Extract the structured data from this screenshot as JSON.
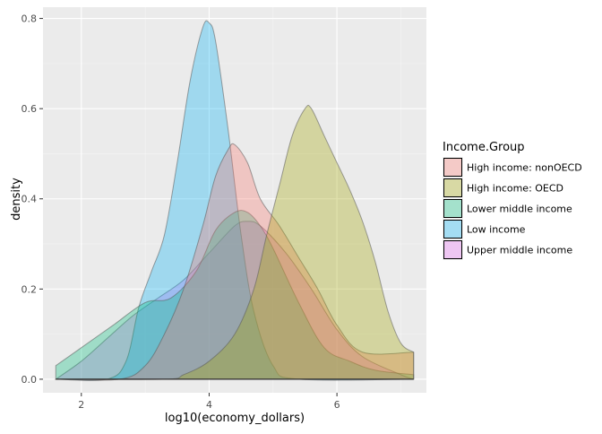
{
  "chart_data": {
    "type": "area",
    "subtype": "density",
    "xlabel": "log10(economy_dollars)",
    "ylabel": "density",
    "xlim": [
      1.4,
      7.4
    ],
    "ylim": [
      -0.03,
      0.825
    ],
    "x_ticks": [
      2,
      4,
      6
    ],
    "y_ticks": [
      0.0,
      0.2,
      0.4,
      0.6,
      0.8
    ],
    "y_tick_labels": [
      "0.0",
      "0.2",
      "0.4",
      "0.6",
      "0.8"
    ],
    "grid": true,
    "legend_placement": "right",
    "legend_title": "Income.Group",
    "series": [
      {
        "name": "Upper middle income",
        "color": "#E76BF3",
        "x": [
          1.6,
          2.0,
          2.4,
          2.8,
          3.2,
          3.6,
          4.0,
          4.4,
          4.6,
          4.8,
          5.2,
          5.6,
          6.0,
          6.4,
          7.0,
          7.2
        ],
        "y": [
          0.0,
          0.04,
          0.09,
          0.14,
          0.18,
          0.22,
          0.28,
          0.34,
          0.35,
          0.34,
          0.28,
          0.2,
          0.11,
          0.05,
          0.01,
          0.0
        ]
      },
      {
        "name": "Low income",
        "color": "#00B0F6",
        "x": [
          1.6,
          2.4,
          2.7,
          2.9,
          3.1,
          3.3,
          3.5,
          3.7,
          3.9,
          4.0,
          4.1,
          4.3,
          4.5,
          4.7,
          5.0,
          5.4,
          7.2
        ],
        "y": [
          0.0,
          0.0,
          0.04,
          0.16,
          0.24,
          0.32,
          0.48,
          0.66,
          0.78,
          0.79,
          0.75,
          0.55,
          0.32,
          0.15,
          0.03,
          0.0,
          0.0
        ]
      },
      {
        "name": "Lower middle income",
        "color": "#00BF7D",
        "x": [
          1.6,
          2.0,
          2.5,
          3.0,
          3.4,
          3.8,
          4.1,
          4.4,
          4.6,
          4.8,
          5.0,
          5.4,
          5.8,
          6.2,
          6.6,
          7.2
        ],
        "y": [
          0.03,
          0.07,
          0.12,
          0.17,
          0.18,
          0.24,
          0.33,
          0.37,
          0.37,
          0.34,
          0.29,
          0.17,
          0.07,
          0.04,
          0.02,
          0.01
        ]
      },
      {
        "name": "High income: nonOECD",
        "color": "#F8766D",
        "x": [
          1.6,
          2.6,
          3.0,
          3.3,
          3.6,
          3.9,
          4.1,
          4.3,
          4.4,
          4.6,
          4.8,
          5.1,
          5.4,
          5.7,
          6.0,
          6.4,
          7.2
        ],
        "y": [
          0.0,
          0.0,
          0.03,
          0.1,
          0.2,
          0.34,
          0.45,
          0.51,
          0.52,
          0.48,
          0.4,
          0.34,
          0.27,
          0.2,
          0.12,
          0.06,
          0.06
        ]
      },
      {
        "name": "High income: OECD",
        "color": "#A3A500",
        "x": [
          1.6,
          3.3,
          3.6,
          4.0,
          4.4,
          4.7,
          4.9,
          5.1,
          5.3,
          5.5,
          5.6,
          5.8,
          6.0,
          6.2,
          6.4,
          6.6,
          6.8,
          7.0,
          7.2
        ],
        "y": [
          0.0,
          0.0,
          0.01,
          0.04,
          0.1,
          0.2,
          0.32,
          0.43,
          0.54,
          0.6,
          0.6,
          0.54,
          0.48,
          0.42,
          0.35,
          0.26,
          0.15,
          0.08,
          0.06
        ]
      }
    ],
    "legend_order": [
      "High income: nonOECD",
      "High income: OECD",
      "Lower middle income",
      "Low income",
      "Upper middle income"
    ]
  }
}
